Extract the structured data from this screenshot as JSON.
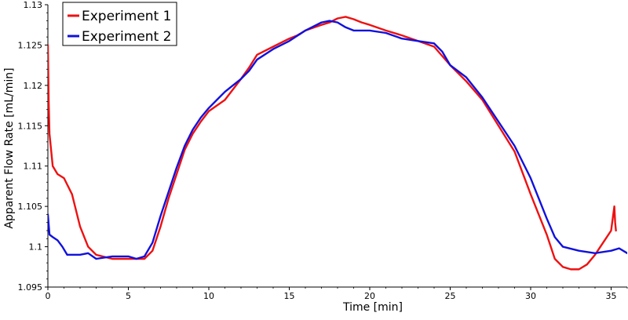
{
  "chart_data": {
    "type": "line",
    "title": "",
    "xlabel": "Time [min]",
    "ylabel": "Apparent Flow Rate  [mL/min]",
    "xlim": [
      0,
      36
    ],
    "ylim": [
      1.095,
      1.13
    ],
    "x_ticks": [
      0,
      5,
      10,
      15,
      20,
      25,
      30,
      35
    ],
    "x_tick_labels": [
      "0",
      "5",
      "10",
      "15",
      "20",
      "25",
      "30",
      "35"
    ],
    "y_ticks": [
      1.095,
      1.1,
      1.105,
      1.11,
      1.115,
      1.12,
      1.125,
      1.13
    ],
    "y_tick_labels": [
      "1.095",
      "1.1",
      "1.105",
      "1.11",
      "1.115",
      "1.12",
      "1.125",
      "1.13"
    ],
    "grid": false,
    "legend_position": "top-left",
    "series": [
      {
        "name": "Experiment 1",
        "color": "#ee1111",
        "points": [
          [
            0,
            1.125
          ],
          [
            0.05,
            1.118
          ],
          [
            0.1,
            1.114
          ],
          [
            0.2,
            1.112
          ],
          [
            0.3,
            1.11
          ],
          [
            0.6,
            1.109
          ],
          [
            1.0,
            1.1085
          ],
          [
            1.5,
            1.1065
          ],
          [
            2.0,
            1.1025
          ],
          [
            2.5,
            1.1
          ],
          [
            3.0,
            1.099
          ],
          [
            4.0,
            1.0985
          ],
          [
            5.0,
            1.0985
          ],
          [
            6.0,
            1.0985
          ],
          [
            6.5,
            1.0995
          ],
          [
            7.0,
            1.1025
          ],
          [
            7.5,
            1.106
          ],
          [
            8.0,
            1.109
          ],
          [
            8.5,
            1.112
          ],
          [
            9.0,
            1.114
          ],
          [
            9.5,
            1.1155
          ],
          [
            10.0,
            1.1168
          ],
          [
            11.0,
            1.1182
          ],
          [
            11.5,
            1.1195
          ],
          [
            12.0,
            1.1208
          ],
          [
            12.5,
            1.1222
          ],
          [
            13.0,
            1.1238
          ],
          [
            14.0,
            1.1248
          ],
          [
            15.0,
            1.1258
          ],
          [
            15.5,
            1.1262
          ],
          [
            16.0,
            1.1268
          ],
          [
            17.0,
            1.1275
          ],
          [
            17.5,
            1.1278
          ],
          [
            18.0,
            1.1283
          ],
          [
            18.5,
            1.1285
          ],
          [
            19.0,
            1.1282
          ],
          [
            19.5,
            1.1278
          ],
          [
            20.0,
            1.1275
          ],
          [
            21.0,
            1.1268
          ],
          [
            22.0,
            1.1262
          ],
          [
            23.0,
            1.1255
          ],
          [
            24.0,
            1.1248
          ],
          [
            25.0,
            1.1225
          ],
          [
            26.0,
            1.1205
          ],
          [
            27.0,
            1.1182
          ],
          [
            28.0,
            1.115
          ],
          [
            29.0,
            1.1118
          ],
          [
            30.0,
            1.1065
          ],
          [
            31.0,
            1.1015
          ],
          [
            31.5,
            1.0985
          ],
          [
            32.0,
            1.0975
          ],
          [
            32.5,
            1.0972
          ],
          [
            33.0,
            1.0972
          ],
          [
            33.5,
            1.0978
          ],
          [
            34.0,
            1.099
          ],
          [
            34.5,
            1.1005
          ],
          [
            35.0,
            1.102
          ],
          [
            35.1,
            1.1035
          ],
          [
            35.2,
            1.105
          ],
          [
            35.25,
            1.103
          ],
          [
            35.3,
            1.102
          ]
        ]
      },
      {
        "name": "Experiment 2",
        "color": "#1111dd",
        "points": [
          [
            0,
            1.104
          ],
          [
            0.1,
            1.1015
          ],
          [
            0.3,
            1.1012
          ],
          [
            0.6,
            1.1008
          ],
          [
            0.9,
            1.1
          ],
          [
            1.2,
            1.099
          ],
          [
            2.0,
            1.099
          ],
          [
            2.5,
            1.0992
          ],
          [
            3.0,
            1.0985
          ],
          [
            4.0,
            1.0988
          ],
          [
            5.0,
            1.0988
          ],
          [
            5.5,
            1.0985
          ],
          [
            6.0,
            1.0988
          ],
          [
            6.5,
            1.1005
          ],
          [
            7.0,
            1.1038
          ],
          [
            7.5,
            1.1068
          ],
          [
            8.0,
            1.1098
          ],
          [
            8.5,
            1.1125
          ],
          [
            9.0,
            1.1145
          ],
          [
            9.5,
            1.116
          ],
          [
            10.0,
            1.1172
          ],
          [
            10.5,
            1.1182
          ],
          [
            11.0,
            1.1192
          ],
          [
            11.5,
            1.12
          ],
          [
            12.0,
            1.1208
          ],
          [
            12.5,
            1.1218
          ],
          [
            13.0,
            1.1232
          ],
          [
            14.0,
            1.1245
          ],
          [
            15.0,
            1.1255
          ],
          [
            16.0,
            1.1268
          ],
          [
            17.0,
            1.1278
          ],
          [
            17.5,
            1.128
          ],
          [
            18.0,
            1.1278
          ],
          [
            18.5,
            1.1272
          ],
          [
            19.0,
            1.1268
          ],
          [
            20.0,
            1.1268
          ],
          [
            21.0,
            1.1265
          ],
          [
            22.0,
            1.1258
          ],
          [
            23.0,
            1.1255
          ],
          [
            24.0,
            1.1252
          ],
          [
            24.5,
            1.1242
          ],
          [
            25.0,
            1.1225
          ],
          [
            26.0,
            1.121
          ],
          [
            27.0,
            1.1185
          ],
          [
            28.0,
            1.1155
          ],
          [
            29.0,
            1.1125
          ],
          [
            30.0,
            1.1085
          ],
          [
            31.0,
            1.1035
          ],
          [
            31.5,
            1.1012
          ],
          [
            32.0,
            1.1
          ],
          [
            33.0,
            1.0995
          ],
          [
            34.0,
            1.0992
          ],
          [
            35.0,
            1.0995
          ],
          [
            35.5,
            1.0998
          ],
          [
            36.0,
            1.0992
          ]
        ]
      }
    ]
  }
}
